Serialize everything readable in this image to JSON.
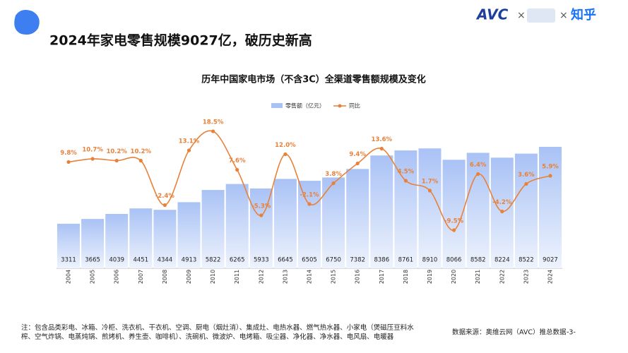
{
  "header": {
    "title": "2024年家电零售规模9027亿，破历史新高",
    "logo_left": "AVC",
    "logo_right": "知乎"
  },
  "chart_data": {
    "type": "bar",
    "title": "历年中国家电市场（不含3C）全渠道零售额规模及变化",
    "categories": [
      "2004",
      "2005",
      "2006",
      "2007",
      "2008",
      "2009",
      "2010",
      "2011",
      "2012",
      "2013",
      "2014",
      "2015",
      "2016",
      "2017",
      "2018",
      "2019",
      "2020",
      "2021",
      "2022",
      "2023",
      "2024"
    ],
    "series": [
      {
        "name": "零售额（亿元）",
        "color": "#a9c2f5",
        "values": [
          3311,
          3665,
          4039,
          4451,
          4344,
          4913,
          5822,
          6265,
          5933,
          6645,
          6505,
          6750,
          7382,
          8386,
          8761,
          8910,
          8066,
          8582,
          8224,
          8522,
          9027
        ]
      },
      {
        "name": "同比",
        "type": "line",
        "axis": "y2",
        "color": "#e8813a",
        "values": [
          9.8,
          10.7,
          10.2,
          10.2,
          -2.4,
          13.1,
          18.5,
          7.6,
          -5.3,
          12.0,
          -2.1,
          3.8,
          9.4,
          13.6,
          4.5,
          1.7,
          -9.5,
          6.4,
          -4.2,
          3.6,
          5.9
        ],
        "value_labels": [
          "9.8%",
          "10.7%",
          "10.2%",
          "10.2%",
          "-2.4%",
          "13.1%",
          "18.5%",
          "7.6%",
          "-5.3%",
          "12.0%",
          "-2.1%",
          "3.8%",
          "9.4%",
          "13.6%",
          "4.5%",
          "1.7%",
          "-9.5%",
          "6.4%",
          "-4.2%",
          "3.6%",
          "5.9%"
        ]
      }
    ]
  },
  "footer": {
    "note": "注：包含品类彩电、冰箱、冷柜、洗衣机、干衣机、空调、厨电（烟灶消）、集成灶、电热水器、燃气热水器、小家电（煲磁压豆料水榨、空气炸锅、电蒸炖锅、煎烤机、养生壶、咖啡机）、洗碗机、微波炉、电烤箱、吸尘器、净化器、净水器、电风扇、电暖器",
    "source": "数据来源：奥维云网（AVC）推总数据",
    "page": "-3-"
  }
}
